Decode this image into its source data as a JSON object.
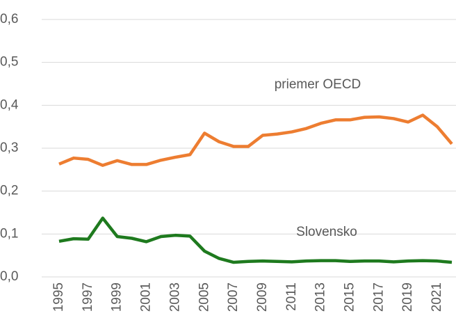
{
  "chart_data": {
    "type": "line",
    "x": [
      1995,
      1996,
      1997,
      1998,
      1999,
      2000,
      2001,
      2002,
      2003,
      2004,
      2005,
      2006,
      2007,
      2008,
      2009,
      2010,
      2011,
      2012,
      2013,
      2014,
      2015,
      2016,
      2017,
      2018,
      2019,
      2020,
      2021,
      2022
    ],
    "xlim": [
      1995,
      2022
    ],
    "xticks": [
      1995,
      1997,
      1999,
      2001,
      2003,
      2005,
      2007,
      2009,
      2011,
      2013,
      2015,
      2017,
      2019,
      2021
    ],
    "ylim": [
      0,
      0.6
    ],
    "yticks": [
      {
        "value": 0,
        "label": "0,0"
      },
      {
        "value": 0.1,
        "label": "0,1"
      },
      {
        "value": 0.2,
        "label": "0,2"
      },
      {
        "value": 0.3,
        "label": "0,3"
      },
      {
        "value": 0.4,
        "label": "0,4"
      },
      {
        "value": 0.5,
        "label": "0,5"
      },
      {
        "value": 0.6,
        "label": "0,6"
      }
    ],
    "grid": true,
    "series": [
      {
        "name": "priemer OECD",
        "color": "#ed7d31",
        "values": [
          0.263,
          0.277,
          0.274,
          0.26,
          0.271,
          0.262,
          0.262,
          0.272,
          0.279,
          0.285,
          0.335,
          0.315,
          0.304,
          0.304,
          0.33,
          0.333,
          0.338,
          0.346,
          0.358,
          0.366,
          0.366,
          0.372,
          0.373,
          0.369,
          0.361,
          0.377,
          0.35,
          0.31
        ]
      },
      {
        "name": "Slovensko",
        "color": "#1e7a1e",
        "values": [
          0.083,
          0.089,
          0.088,
          0.137,
          0.094,
          0.09,
          0.082,
          0.094,
          0.097,
          0.095,
          0.06,
          0.043,
          0.034,
          0.036,
          0.037,
          0.036,
          0.035,
          0.037,
          0.038,
          0.038,
          0.036,
          0.037,
          0.037,
          0.035,
          0.037,
          0.038,
          0.037,
          0.034
        ]
      }
    ]
  }
}
